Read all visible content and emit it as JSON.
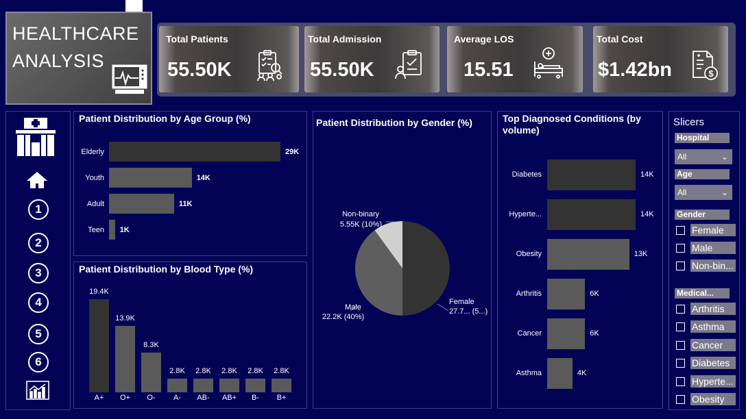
{
  "title": {
    "line1": "HEALTHCARE",
    "line2": "ANALYSIS"
  },
  "kpis": [
    {
      "label": "Total Patients",
      "value": "55.50K",
      "icon": "clipboard-team-icon"
    },
    {
      "label": "Total Admission",
      "value": "55.50K",
      "icon": "admission-checklist-icon"
    },
    {
      "label": "Average LOS",
      "value": "15.51",
      "icon": "hospital-bed-icon"
    },
    {
      "label": "Total Cost",
      "value": "$1.42bn",
      "icon": "invoice-dollar-icon"
    }
  ],
  "nav": {
    "numbers": [
      "1",
      "2",
      "3",
      "4",
      "5",
      "6"
    ]
  },
  "age_chart": {
    "title": "Patient Distribution by Age Group (%)",
    "categories": [
      "Elderly",
      "Youth",
      "Adult",
      "Teen"
    ],
    "labels": [
      "29K",
      "14K",
      "11K",
      "1K"
    ],
    "values": [
      29,
      14,
      11,
      1
    ]
  },
  "blood_chart": {
    "title": "Patient Distribution by Blood Type (%)",
    "categories": [
      "A+",
      "O+",
      "O-",
      "A-",
      "AB-",
      "AB+",
      "B-",
      "B+"
    ],
    "labels": [
      "19.4K",
      "13.9K",
      "8.3K",
      "2.8K",
      "2.8K",
      "2.8K",
      "2.8K",
      "2.8K"
    ],
    "values": [
      19.4,
      13.9,
      8.3,
      2.8,
      2.8,
      2.8,
      2.8,
      2.8
    ]
  },
  "gender_chart": {
    "title": "Patient Distribution by Gender (%)",
    "labels": {
      "nonbinary_name": "Non-binary",
      "nonbinary_val": "5.55K (10%)",
      "male_name": "Male",
      "male_val": "22.2K (40%)",
      "female_name": "Female",
      "female_val": "27.7... (5...)"
    }
  },
  "conditions_chart": {
    "title": "Top Diagnosed Conditions (by volume)",
    "categories": [
      "Diabetes",
      "Hyperte...",
      "Obesity",
      "Arthritis",
      "Cancer",
      "Asthma"
    ],
    "labels": [
      "14K",
      "14K",
      "13K",
      "6K",
      "6K",
      "4K"
    ],
    "values": [
      14,
      14,
      13,
      6,
      6,
      4
    ]
  },
  "chart_data": [
    {
      "type": "bar",
      "title": "Patient Distribution by Age Group (%)",
      "categories": [
        "Elderly",
        "Youth",
        "Adult",
        "Teen"
      ],
      "values": [
        29,
        14,
        11,
        1
      ]
    },
    {
      "type": "bar",
      "title": "Patient Distribution by Blood Type (%)",
      "categories": [
        "A+",
        "O+",
        "O-",
        "A-",
        "AB-",
        "AB+",
        "B-",
        "B+"
      ],
      "values": [
        19.4,
        13.9,
        8.3,
        2.8,
        2.8,
        2.8,
        2.8,
        2.8
      ]
    },
    {
      "type": "pie",
      "title": "Patient Distribution by Gender (%)",
      "categories": [
        "Female",
        "Male",
        "Non-binary"
      ],
      "values": [
        27.7,
        22.2,
        5.55
      ]
    },
    {
      "type": "bar",
      "title": "Top Diagnosed Conditions (by volume)",
      "categories": [
        "Diabetes",
        "Hyperte...",
        "Obesity",
        "Arthritis",
        "Cancer",
        "Asthma"
      ],
      "values": [
        14,
        14,
        13,
        6,
        6,
        4
      ]
    }
  ],
  "slicers": {
    "header": "Slicers",
    "hospital_label": "Hospital",
    "hospital_value": "All",
    "age_label": "Age",
    "age_value": "All",
    "gender_label": "Gender",
    "gender_options": [
      "Female",
      "Male",
      "Non-bin..."
    ],
    "medical_label": "Medical...",
    "medical_options": [
      "Arthritis",
      "Asthma",
      "Cancer",
      "Diabetes",
      "Hyperte...",
      "Obesity"
    ]
  },
  "colors": {
    "background": "#030356",
    "bar": "#5a5a5a",
    "bar_dark": "#333333",
    "pie_female": "#333333",
    "pie_male": "#5e5e5e",
    "pie_nonbinary": "#d0d0d0"
  }
}
